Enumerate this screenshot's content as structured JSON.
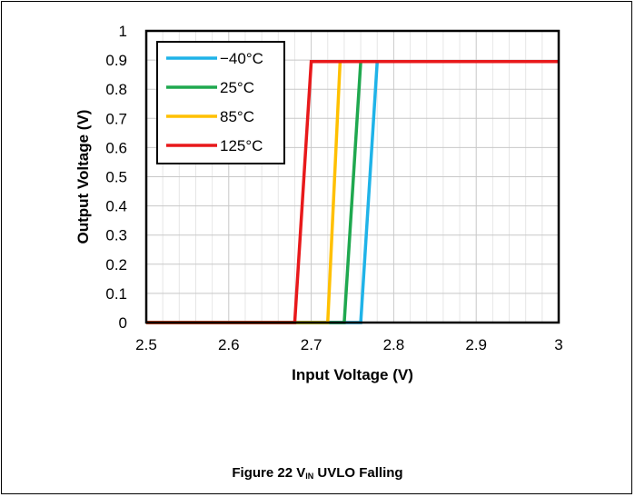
{
  "chart_data": {
    "type": "line",
    "title": "",
    "xlabel": "Input Voltage (V)",
    "ylabel": "Output Voltage (V)",
    "xlim": [
      2.5,
      3
    ],
    "ylim": [
      0,
      1
    ],
    "xticks": [
      "2.5",
      "2.6",
      "2.7",
      "2.8",
      "2.9",
      "3"
    ],
    "yticks": [
      "0",
      "0.1",
      "0.2",
      "0.3",
      "0.4",
      "0.5",
      "0.6",
      "0.7",
      "0.8",
      "0.9",
      "1"
    ],
    "grid": true,
    "legend_position": "top-left",
    "series": [
      {
        "name": "−40°C",
        "color": "#1FB3E8",
        "x": [
          2.5,
          2.76,
          2.78,
          3
        ],
        "y": [
          0,
          0,
          0.895,
          0.895
        ]
      },
      {
        "name": "25°C",
        "color": "#1FA84F",
        "x": [
          2.5,
          2.74,
          2.76,
          3
        ],
        "y": [
          0,
          0,
          0.895,
          0.895
        ]
      },
      {
        "name": "85°C",
        "color": "#FFC000",
        "x": [
          2.5,
          2.72,
          2.735,
          3
        ],
        "y": [
          0,
          0,
          0.895,
          0.895
        ]
      },
      {
        "name": "125°C",
        "color": "#E8191B",
        "x": [
          2.5,
          2.68,
          2.7,
          3
        ],
        "y": [
          0,
          0,
          0.895,
          0.895
        ]
      }
    ]
  },
  "caption": {
    "prefix": "Figure 22 V",
    "subscript": "IN",
    "suffix": " UVLO Falling"
  }
}
